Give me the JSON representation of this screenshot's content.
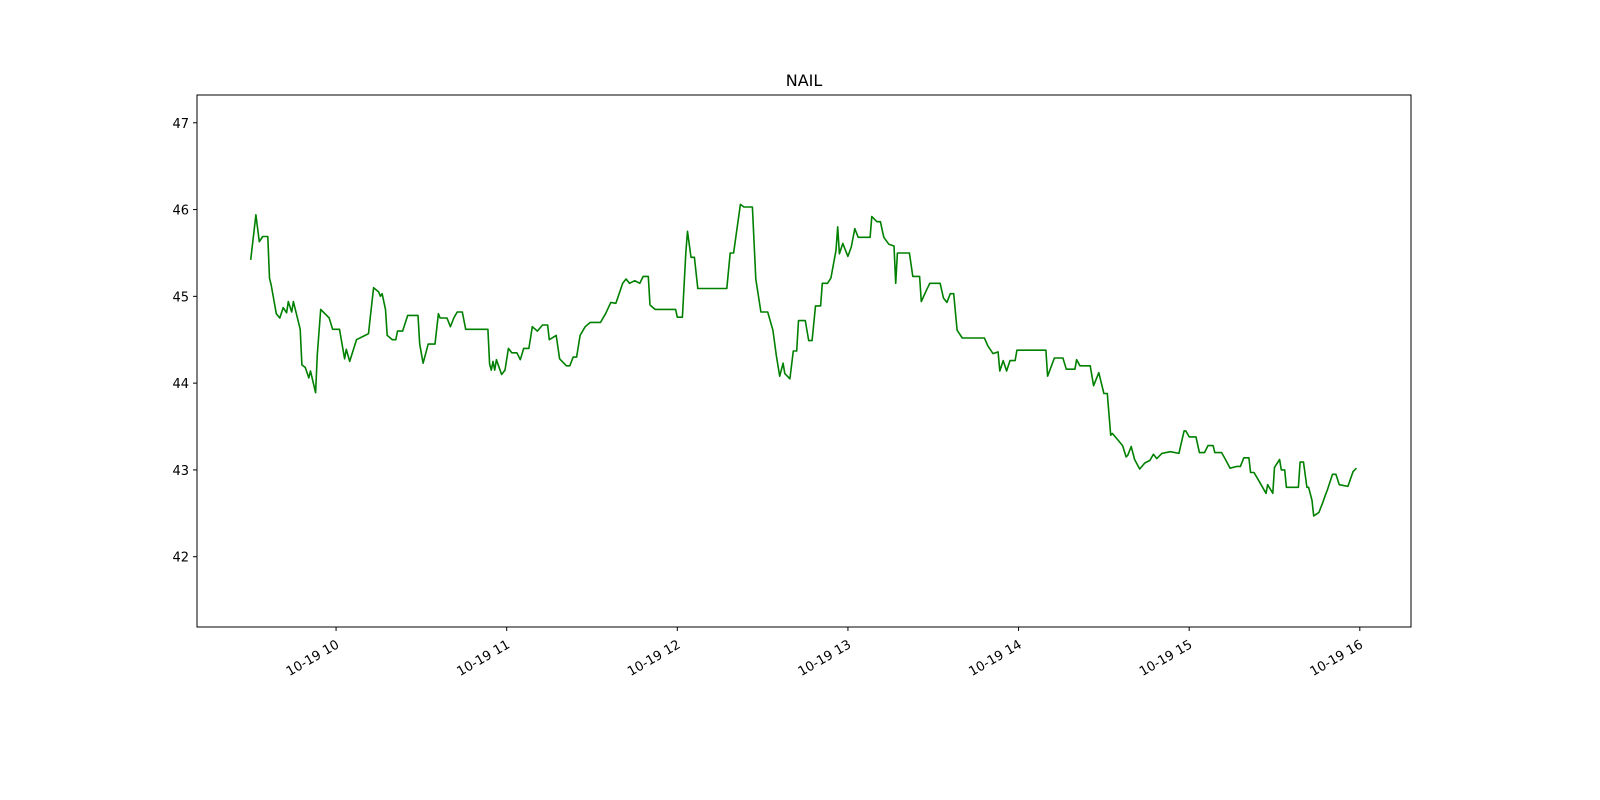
{
  "chart_data": {
    "type": "line",
    "title": "NAIL",
    "color": "#008000",
    "x": [
      9.5,
      9.53,
      9.55,
      9.57,
      9.6,
      9.61,
      9.62,
      9.65,
      9.67,
      9.69,
      9.71,
      9.72,
      9.74,
      9.75,
      9.77,
      9.79,
      9.8,
      9.82,
      9.84,
      9.85,
      9.88,
      9.89,
      9.91,
      9.94,
      9.96,
      9.98,
      10.02,
      10.05,
      10.06,
      10.08,
      10.12,
      10.17,
      10.19,
      10.2,
      10.22,
      10.25,
      10.26,
      10.27,
      10.29,
      10.3,
      10.33,
      10.35,
      10.36,
      10.39,
      10.42,
      10.48,
      10.49,
      10.51,
      10.54,
      10.58,
      10.6,
      10.61,
      10.65,
      10.67,
      10.69,
      10.71,
      10.74,
      10.76,
      10.89,
      10.9,
      10.91,
      10.92,
      10.93,
      10.94,
      10.97,
      10.99,
      11.01,
      11.03,
      11.06,
      11.08,
      11.1,
      11.13,
      11.15,
      11.18,
      11.21,
      11.24,
      11.25,
      11.29,
      11.31,
      11.35,
      11.37,
      11.39,
      11.41,
      11.43,
      11.46,
      11.49,
      11.55,
      11.58,
      11.61,
      11.64,
      11.68,
      11.7,
      11.72,
      11.75,
      11.78,
      11.8,
      11.83,
      11.84,
      11.87,
      11.99,
      12.0,
      12.03,
      12.05,
      12.06,
      12.08,
      12.1,
      12.12,
      12.29,
      12.31,
      12.33,
      12.37,
      12.39,
      12.44,
      12.46,
      12.49,
      12.53,
      12.56,
      12.58,
      12.6,
      12.62,
      12.63,
      12.66,
      12.68,
      12.7,
      12.71,
      12.75,
      12.77,
      12.79,
      12.81,
      12.84,
      12.85,
      12.88,
      12.9,
      12.93,
      12.94,
      12.95,
      12.97,
      13.0,
      13.02,
      13.04,
      13.06,
      13.13,
      13.14,
      13.17,
      13.19,
      13.21,
      13.24,
      13.27,
      13.28,
      13.29,
      13.36,
      13.38,
      13.42,
      13.43,
      13.46,
      13.48,
      13.54,
      13.56,
      13.58,
      13.6,
      13.62,
      13.64,
      13.67,
      13.8,
      13.82,
      13.85,
      13.88,
      13.89,
      13.91,
      13.93,
      13.95,
      13.98,
      13.99,
      14.16,
      14.17,
      14.21,
      14.26,
      14.28,
      14.33,
      14.34,
      14.36,
      14.42,
      14.44,
      14.47,
      14.5,
      14.52,
      14.54,
      14.55,
      14.58,
      14.61,
      14.63,
      14.64,
      14.66,
      14.68,
      14.71,
      14.74,
      14.77,
      14.79,
      14.81,
      14.84,
      14.89,
      14.94,
      14.97,
      14.98,
      15.0,
      15.04,
      15.06,
      15.09,
      15.11,
      15.14,
      15.15,
      15.19,
      15.21,
      15.24,
      15.28,
      15.3,
      15.32,
      15.35,
      15.36,
      15.38,
      15.41,
      15.43,
      15.45,
      15.46,
      15.49,
      15.5,
      15.53,
      15.54,
      15.56,
      15.57,
      15.64,
      15.65,
      15.67,
      15.69,
      15.7,
      15.72,
      15.73,
      15.76,
      15.78,
      15.8,
      15.81,
      15.84,
      15.86,
      15.88,
      15.93,
      15.96,
      15.98
    ],
    "values": [
      45.42,
      45.94,
      45.63,
      45.69,
      45.69,
      45.21,
      45.13,
      44.8,
      44.75,
      44.87,
      44.81,
      44.94,
      44.82,
      44.94,
      44.78,
      44.62,
      44.21,
      44.18,
      44.06,
      44.14,
      43.89,
      44.33,
      44.85,
      44.79,
      44.75,
      44.62,
      44.62,
      44.28,
      44.39,
      44.25,
      44.5,
      44.55,
      44.57,
      44.75,
      45.1,
      45.05,
      45.0,
      45.03,
      44.85,
      44.55,
      44.5,
      44.5,
      44.6,
      44.6,
      44.78,
      44.78,
      44.45,
      44.23,
      44.45,
      44.45,
      44.8,
      44.75,
      44.75,
      44.65,
      44.75,
      44.82,
      44.82,
      44.62,
      44.62,
      44.22,
      44.15,
      44.25,
      44.15,
      44.27,
      44.1,
      44.15,
      44.4,
      44.35,
      44.35,
      44.27,
      44.4,
      44.4,
      44.65,
      44.6,
      44.67,
      44.67,
      44.5,
      44.55,
      44.28,
      44.2,
      44.2,
      44.3,
      44.3,
      44.55,
      44.65,
      44.7,
      44.7,
      44.8,
      44.93,
      44.92,
      45.15,
      45.2,
      45.15,
      45.18,
      45.15,
      45.23,
      45.23,
      44.9,
      44.85,
      44.85,
      44.76,
      44.76,
      45.5,
      45.75,
      45.45,
      45.45,
      45.09,
      45.09,
      45.5,
      45.5,
      46.06,
      46.03,
      46.03,
      45.2,
      44.82,
      44.82,
      44.61,
      44.32,
      44.08,
      44.23,
      44.11,
      44.05,
      44.37,
      44.37,
      44.72,
      44.72,
      44.49,
      44.49,
      44.89,
      44.89,
      45.15,
      45.15,
      45.21,
      45.53,
      45.8,
      45.49,
      45.61,
      45.46,
      45.57,
      45.78,
      45.68,
      45.68,
      45.92,
      45.86,
      45.86,
      45.68,
      45.6,
      45.58,
      45.15,
      45.5,
      45.5,
      45.23,
      45.23,
      44.94,
      45.07,
      45.15,
      45.15,
      44.98,
      44.93,
      45.03,
      45.03,
      44.61,
      44.52,
      44.52,
      44.43,
      44.34,
      44.36,
      44.14,
      44.26,
      44.14,
      44.26,
      44.26,
      44.38,
      44.38,
      44.08,
      44.29,
      44.29,
      44.16,
      44.16,
      44.27,
      44.2,
      44.2,
      43.97,
      44.12,
      43.88,
      43.88,
      43.4,
      43.42,
      43.35,
      43.28,
      43.15,
      43.17,
      43.27,
      43.12,
      43.01,
      43.08,
      43.11,
      43.18,
      43.13,
      43.19,
      43.21,
      43.19,
      43.45,
      43.45,
      43.38,
      43.38,
      43.2,
      43.2,
      43.28,
      43.28,
      43.2,
      43.2,
      43.13,
      43.02,
      43.04,
      43.04,
      43.14,
      43.14,
      42.97,
      42.97,
      42.87,
      42.8,
      42.73,
      42.83,
      42.73,
      43.03,
      43.12,
      43.0,
      43.0,
      42.8,
      42.8,
      43.09,
      43.09,
      42.8,
      42.8,
      42.65,
      42.47,
      42.51,
      42.61,
      42.72,
      42.77,
      42.95,
      42.95,
      42.83,
      42.81,
      42.98,
      43.02
    ],
    "xlim": [
      9.185,
      16.3
    ],
    "ylim": [
      41.19,
      47.32
    ],
    "xticks": [
      {
        "value": 10,
        "label": "10-19 10"
      },
      {
        "value": 11,
        "label": "10-19 11"
      },
      {
        "value": 12,
        "label": "10-19 12"
      },
      {
        "value": 13,
        "label": "10-19 13"
      },
      {
        "value": 14,
        "label": "10-19 14"
      },
      {
        "value": 15,
        "label": "10-19 15"
      },
      {
        "value": 16,
        "label": "10-19 16"
      }
    ],
    "yticks": [
      42,
      43,
      44,
      45,
      46,
      47
    ]
  }
}
